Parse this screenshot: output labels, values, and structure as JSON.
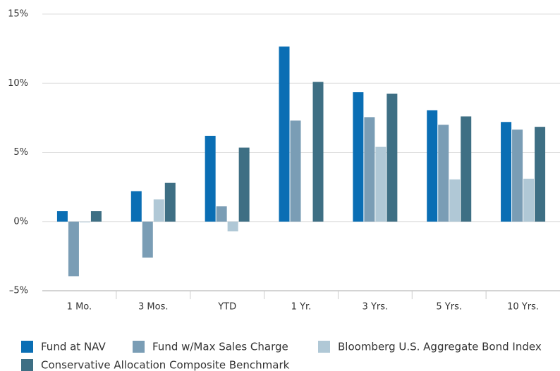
{
  "chart_data": {
    "type": "bar",
    "categories": [
      "1 Mo.",
      "3 Mos.",
      "YTD",
      "1 Yr.",
      "3 Yrs.",
      "5 Yrs.",
      "10 Yrs."
    ],
    "series": [
      {
        "name": "Fund at NAV",
        "color": "#0a6eb4",
        "values": [
          0.75,
          2.2,
          6.2,
          12.65,
          9.35,
          8.05,
          7.2
        ]
      },
      {
        "name": "Fund w/Max Sales Charge",
        "color": "#7a9db5",
        "values": [
          -3.95,
          -2.6,
          1.1,
          7.3,
          7.55,
          7.0,
          6.65
        ]
      },
      {
        "name": "Bloomberg U.S. Aggregate Bond Index",
        "color": "#b0c8d6",
        "values": [
          -0.05,
          1.6,
          -0.7,
          null,
          5.4,
          3.05,
          3.1
        ]
      },
      {
        "name": "Conservative Allocation Composite Benchmark",
        "color": "#3e6f84",
        "values": [
          0.75,
          2.8,
          5.35,
          10.1,
          9.25,
          7.6,
          6.85
        ]
      }
    ],
    "ylim": [
      -5,
      15
    ],
    "yticks": [
      {
        "value": 15,
        "label": "15%"
      },
      {
        "value": 10,
        "label": "10%"
      },
      {
        "value": 5,
        "label": "5%"
      },
      {
        "value": 0,
        "label": "0%"
      },
      {
        "value": -5,
        "label": "–5%"
      }
    ],
    "grid": true
  }
}
